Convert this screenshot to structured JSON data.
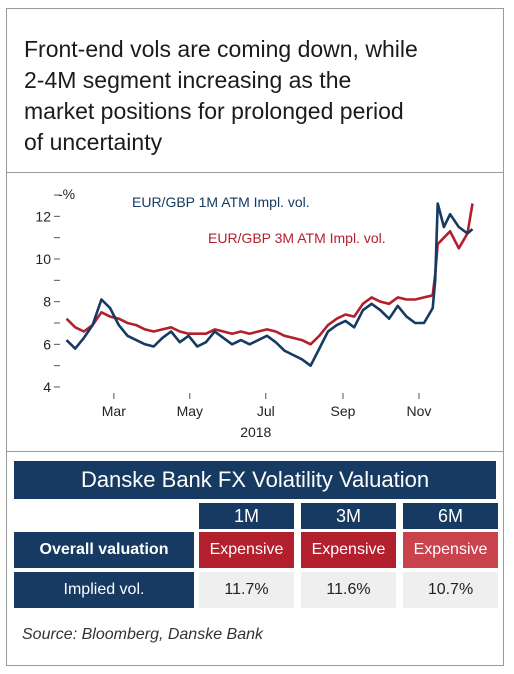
{
  "title_lines": [
    "Front-end vols are coming down, while",
    "2-4M segment increasing as the",
    "market positions for prolonged period",
    "of uncertainty"
  ],
  "chart_data": {
    "type": "line",
    "y_unit": "%",
    "ylim": [
      4,
      13
    ],
    "yticks": [
      4,
      6,
      8,
      10,
      12
    ],
    "x_range": [
      "2018-01-20",
      "2018-12-20"
    ],
    "x_ticks": [
      {
        "label": "Mar",
        "date": "2018-03-01"
      },
      {
        "label": "May",
        "date": "2018-05-01"
      },
      {
        "label": "Jul",
        "date": "2018-07-01"
      },
      {
        "label": "Sep",
        "date": "2018-09-01"
      },
      {
        "label": "Nov",
        "date": "2018-11-01"
      }
    ],
    "year_label": "2018",
    "series": [
      {
        "name": "EUR/GBP 1M ATM Impl. vol.",
        "color": "#163a62",
        "points": [
          [
            "2018-01-22",
            6.2
          ],
          [
            "2018-01-29",
            5.8
          ],
          [
            "2018-02-05",
            6.3
          ],
          [
            "2018-02-12",
            6.9
          ],
          [
            "2018-02-19",
            8.1
          ],
          [
            "2018-02-26",
            7.7
          ],
          [
            "2018-03-05",
            6.9
          ],
          [
            "2018-03-12",
            6.4
          ],
          [
            "2018-03-19",
            6.2
          ],
          [
            "2018-03-26",
            6.0
          ],
          [
            "2018-04-02",
            5.9
          ],
          [
            "2018-04-09",
            6.3
          ],
          [
            "2018-04-16",
            6.6
          ],
          [
            "2018-04-23",
            6.1
          ],
          [
            "2018-04-30",
            6.4
          ],
          [
            "2018-05-07",
            5.9
          ],
          [
            "2018-05-14",
            6.1
          ],
          [
            "2018-05-21",
            6.6
          ],
          [
            "2018-05-28",
            6.3
          ],
          [
            "2018-06-04",
            6.0
          ],
          [
            "2018-06-11",
            6.2
          ],
          [
            "2018-06-18",
            6.0
          ],
          [
            "2018-06-25",
            6.2
          ],
          [
            "2018-07-02",
            6.4
          ],
          [
            "2018-07-09",
            6.1
          ],
          [
            "2018-07-16",
            5.7
          ],
          [
            "2018-07-23",
            5.5
          ],
          [
            "2018-07-30",
            5.3
          ],
          [
            "2018-08-06",
            5.0
          ],
          [
            "2018-08-13",
            5.8
          ],
          [
            "2018-08-20",
            6.6
          ],
          [
            "2018-08-27",
            6.9
          ],
          [
            "2018-09-03",
            7.1
          ],
          [
            "2018-09-10",
            6.8
          ],
          [
            "2018-09-17",
            7.6
          ],
          [
            "2018-09-24",
            7.9
          ],
          [
            "2018-10-01",
            7.6
          ],
          [
            "2018-10-08",
            7.2
          ],
          [
            "2018-10-15",
            7.8
          ],
          [
            "2018-10-22",
            7.3
          ],
          [
            "2018-10-29",
            7.0
          ],
          [
            "2018-11-05",
            7.0
          ],
          [
            "2018-11-12",
            7.7
          ],
          [
            "2018-11-14",
            9.0
          ],
          [
            "2018-11-16",
            12.6
          ],
          [
            "2018-11-21",
            11.5
          ],
          [
            "2018-11-26",
            12.1
          ],
          [
            "2018-12-03",
            11.5
          ],
          [
            "2018-12-10",
            11.2
          ],
          [
            "2018-12-14",
            11.4
          ]
        ]
      },
      {
        "name": "EUR/GBP 3M ATM Impl. vol.",
        "color": "#b21f2d",
        "points": [
          [
            "2018-01-22",
            7.2
          ],
          [
            "2018-01-29",
            6.8
          ],
          [
            "2018-02-05",
            6.6
          ],
          [
            "2018-02-12",
            6.9
          ],
          [
            "2018-02-19",
            7.5
          ],
          [
            "2018-02-26",
            7.3
          ],
          [
            "2018-03-05",
            7.2
          ],
          [
            "2018-03-12",
            7.0
          ],
          [
            "2018-03-19",
            6.9
          ],
          [
            "2018-03-26",
            6.7
          ],
          [
            "2018-04-02",
            6.6
          ],
          [
            "2018-04-09",
            6.7
          ],
          [
            "2018-04-16",
            6.8
          ],
          [
            "2018-04-23",
            6.6
          ],
          [
            "2018-04-30",
            6.5
          ],
          [
            "2018-05-07",
            6.5
          ],
          [
            "2018-05-14",
            6.5
          ],
          [
            "2018-05-21",
            6.7
          ],
          [
            "2018-05-28",
            6.6
          ],
          [
            "2018-06-04",
            6.5
          ],
          [
            "2018-06-11",
            6.6
          ],
          [
            "2018-06-18",
            6.5
          ],
          [
            "2018-06-25",
            6.6
          ],
          [
            "2018-07-02",
            6.7
          ],
          [
            "2018-07-09",
            6.6
          ],
          [
            "2018-07-16",
            6.4
          ],
          [
            "2018-07-23",
            6.3
          ],
          [
            "2018-07-30",
            6.2
          ],
          [
            "2018-08-06",
            6.0
          ],
          [
            "2018-08-13",
            6.4
          ],
          [
            "2018-08-20",
            6.9
          ],
          [
            "2018-08-27",
            7.2
          ],
          [
            "2018-09-03",
            7.4
          ],
          [
            "2018-09-10",
            7.3
          ],
          [
            "2018-09-17",
            7.9
          ],
          [
            "2018-09-24",
            8.2
          ],
          [
            "2018-10-01",
            8.0
          ],
          [
            "2018-10-08",
            7.9
          ],
          [
            "2018-10-15",
            8.2
          ],
          [
            "2018-10-22",
            8.1
          ],
          [
            "2018-10-29",
            8.1
          ],
          [
            "2018-11-05",
            8.2
          ],
          [
            "2018-11-12",
            8.3
          ],
          [
            "2018-11-14",
            9.3
          ],
          [
            "2018-11-16",
            10.7
          ],
          [
            "2018-11-21",
            11.0
          ],
          [
            "2018-11-26",
            11.3
          ],
          [
            "2018-12-03",
            10.5
          ],
          [
            "2018-12-10",
            11.2
          ],
          [
            "2018-12-14",
            12.6
          ]
        ]
      }
    ]
  },
  "table": {
    "title": "Danske Bank FX Volatility Valuation",
    "columns": [
      "1M",
      "3M",
      "6M"
    ],
    "rows": [
      {
        "label": "Overall valuation",
        "values": [
          "Expensive",
          "Expensive",
          "Expensive"
        ],
        "colors": [
          "#b21f2d",
          "#b21f2d",
          "#c8434c"
        ]
      },
      {
        "label": "Implied vol.",
        "values": [
          "11.7%",
          "11.6%",
          "10.7%"
        ]
      }
    ]
  },
  "source": "Source: Bloomberg, Danske Bank"
}
